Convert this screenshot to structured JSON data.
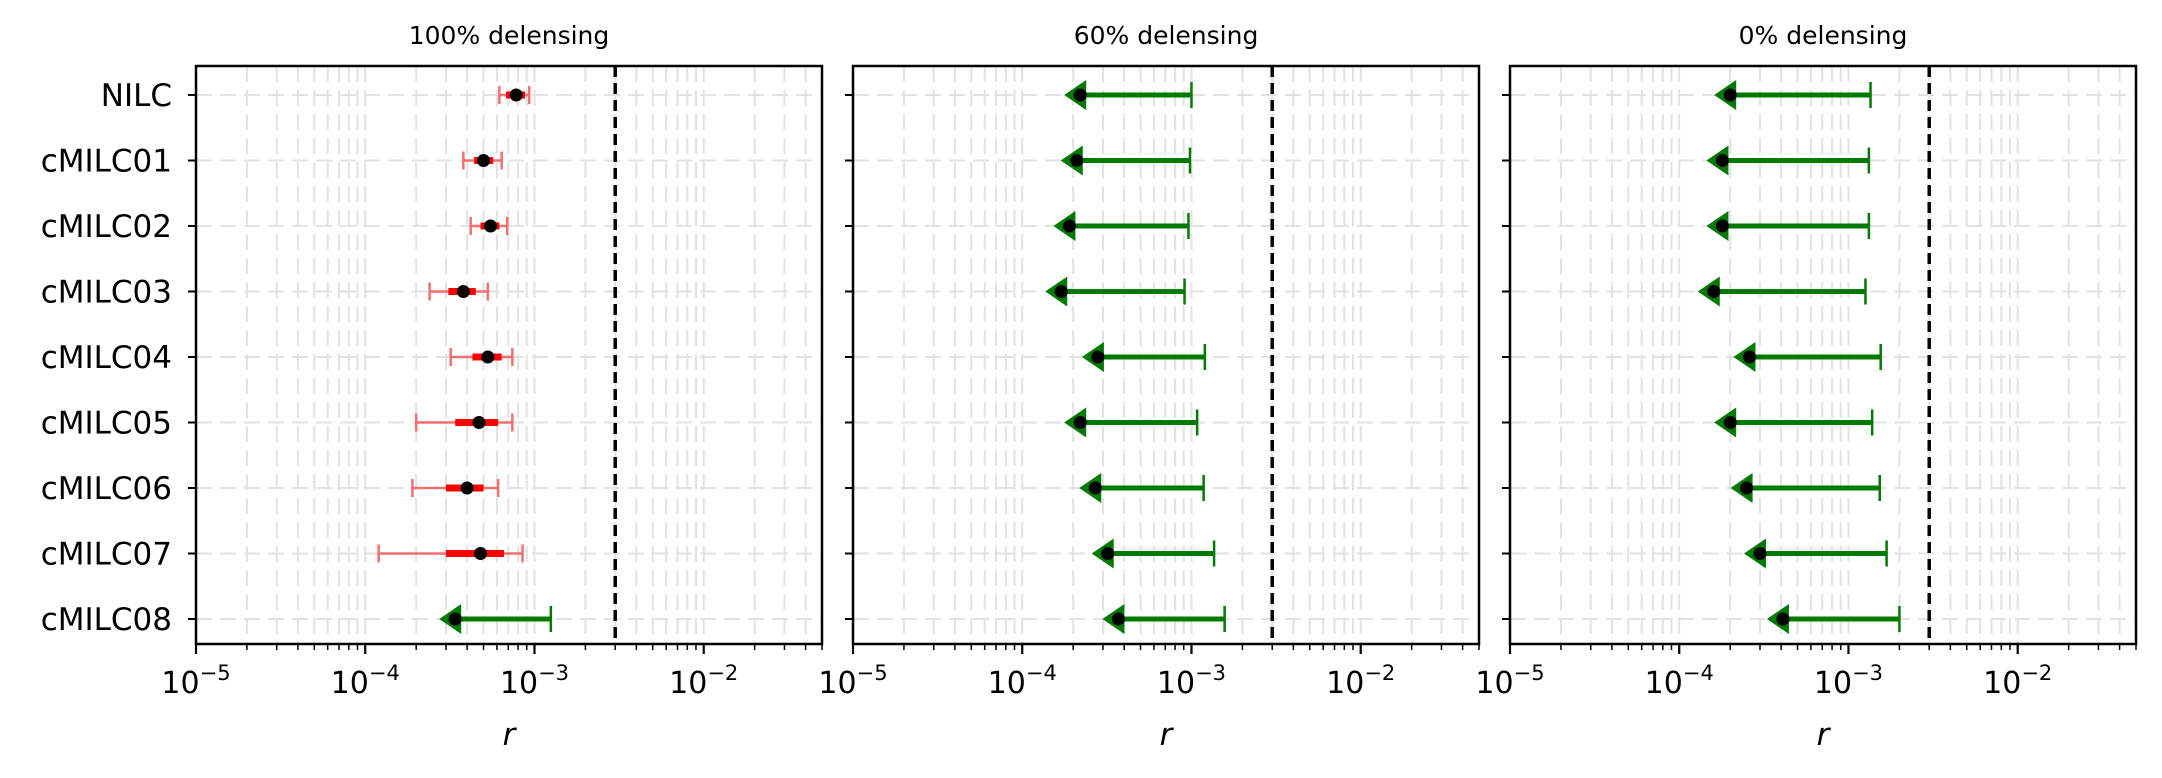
{
  "chart_data": [
    {
      "type": "errorbar",
      "title": "100% delensing",
      "xlabel": "r",
      "xscale": "log",
      "xlim": [
        1e-05,
        0.05
      ],
      "xticks": [
        {
          "base": "10",
          "exp": "−5"
        },
        {
          "base": "10",
          "exp": "−4"
        },
        {
          "base": "10",
          "exp": "−3"
        },
        {
          "base": "10",
          "exp": "−2"
        }
      ],
      "reference_line": 0.003,
      "grid": true,
      "categories": [
        "NILC",
        "cMILC01",
        "cMILC02",
        "cMILC03",
        "cMILC04",
        "cMILC05",
        "cMILC06",
        "cMILC07",
        "cMILC08"
      ],
      "points": [
        {
          "label": "NILC",
          "kind": "measurement",
          "r": 0.00078,
          "sigma1": [
            0.00068,
            0.00088
          ],
          "sigma2": [
            0.00062,
            0.00093
          ]
        },
        {
          "label": "cMILC01",
          "kind": "measurement",
          "r": 0.0005,
          "sigma1": [
            0.00044,
            0.00057
          ],
          "sigma2": [
            0.00038,
            0.00064
          ]
        },
        {
          "label": "cMILC02",
          "kind": "measurement",
          "r": 0.00055,
          "sigma1": [
            0.00048,
            0.00062
          ],
          "sigma2": [
            0.00042,
            0.00069
          ]
        },
        {
          "label": "cMILC03",
          "kind": "measurement",
          "r": 0.00038,
          "sigma1": [
            0.00031,
            0.00045
          ],
          "sigma2": [
            0.00024,
            0.00053
          ]
        },
        {
          "label": "cMILC04",
          "kind": "measurement",
          "r": 0.00053,
          "sigma1": [
            0.00043,
            0.00064
          ],
          "sigma2": [
            0.00032,
            0.00074
          ]
        },
        {
          "label": "cMILC05",
          "kind": "measurement",
          "r": 0.00047,
          "sigma1": [
            0.00034,
            0.00061
          ],
          "sigma2": [
            0.0002,
            0.00074
          ]
        },
        {
          "label": "cMILC06",
          "kind": "measurement",
          "r": 0.0004,
          "sigma1": [
            0.0003,
            0.0005
          ],
          "sigma2": [
            0.00019,
            0.00061
          ]
        },
        {
          "label": "cMILC07",
          "kind": "measurement",
          "r": 0.00048,
          "sigma1": [
            0.0003,
            0.00066
          ],
          "sigma2": [
            0.00012,
            0.00085
          ]
        },
        {
          "label": "cMILC08",
          "kind": "upper_limit",
          "r": 0.00034,
          "upper": 0.00125
        }
      ]
    },
    {
      "type": "errorbar",
      "title": "60% delensing",
      "xlabel": "r",
      "xscale": "log",
      "xlim": [
        1e-05,
        0.05
      ],
      "xticks": [
        {
          "base": "10",
          "exp": "−5"
        },
        {
          "base": "10",
          "exp": "−4"
        },
        {
          "base": "10",
          "exp": "−3"
        },
        {
          "base": "10",
          "exp": "−2"
        }
      ],
      "reference_line": 0.003,
      "grid": true,
      "categories": [
        "NILC",
        "cMILC01",
        "cMILC02",
        "cMILC03",
        "cMILC04",
        "cMILC05",
        "cMILC06",
        "cMILC07",
        "cMILC08"
      ],
      "points": [
        {
          "label": "NILC",
          "kind": "upper_limit",
          "r": 0.00022,
          "upper": 0.001
        },
        {
          "label": "cMILC01",
          "kind": "upper_limit",
          "r": 0.00021,
          "upper": 0.00098
        },
        {
          "label": "cMILC02",
          "kind": "upper_limit",
          "r": 0.00019,
          "upper": 0.00096
        },
        {
          "label": "cMILC03",
          "kind": "upper_limit",
          "r": 0.00017,
          "upper": 0.00091
        },
        {
          "label": "cMILC04",
          "kind": "upper_limit",
          "r": 0.00028,
          "upper": 0.0012
        },
        {
          "label": "cMILC05",
          "kind": "upper_limit",
          "r": 0.00022,
          "upper": 0.00108
        },
        {
          "label": "cMILC06",
          "kind": "upper_limit",
          "r": 0.00027,
          "upper": 0.00118
        },
        {
          "label": "cMILC07",
          "kind": "upper_limit",
          "r": 0.00032,
          "upper": 0.00136
        },
        {
          "label": "cMILC08",
          "kind": "upper_limit",
          "r": 0.00037,
          "upper": 0.00157
        }
      ]
    },
    {
      "type": "errorbar",
      "title": "0% delensing",
      "xlabel": "r",
      "xscale": "log",
      "xlim": [
        1e-05,
        0.05
      ],
      "xticks": [
        {
          "base": "10",
          "exp": "−5"
        },
        {
          "base": "10",
          "exp": "−4"
        },
        {
          "base": "10",
          "exp": "−3"
        },
        {
          "base": "10",
          "exp": "−2"
        }
      ],
      "reference_line": 0.003,
      "grid": true,
      "categories": [
        "NILC",
        "cMILC01",
        "cMILC02",
        "cMILC03",
        "cMILC04",
        "cMILC05",
        "cMILC06",
        "cMILC07",
        "cMILC08"
      ],
      "points": [
        {
          "label": "NILC",
          "kind": "upper_limit",
          "r": 0.0002,
          "upper": 0.00135
        },
        {
          "label": "cMILC01",
          "kind": "upper_limit",
          "r": 0.00018,
          "upper": 0.00132
        },
        {
          "label": "cMILC02",
          "kind": "upper_limit",
          "r": 0.00018,
          "upper": 0.00132
        },
        {
          "label": "cMILC03",
          "kind": "upper_limit",
          "r": 0.00016,
          "upper": 0.00126
        },
        {
          "label": "cMILC04",
          "kind": "upper_limit",
          "r": 0.00026,
          "upper": 0.00155
        },
        {
          "label": "cMILC05",
          "kind": "upper_limit",
          "r": 0.0002,
          "upper": 0.00138
        },
        {
          "label": "cMILC06",
          "kind": "upper_limit",
          "r": 0.00025,
          "upper": 0.00153
        },
        {
          "label": "cMILC07",
          "kind": "upper_limit",
          "r": 0.0003,
          "upper": 0.00168
        },
        {
          "label": "cMILC08",
          "kind": "upper_limit",
          "r": 0.00041,
          "upper": 0.002
        }
      ]
    }
  ],
  "colors": {
    "measurement_1sigma": "#ff0000",
    "measurement_2sigma": "#f37070",
    "upper_limit": "#007a00",
    "marker": "#000000",
    "reference_line": "#000000",
    "grid": "#e2e2e2"
  }
}
